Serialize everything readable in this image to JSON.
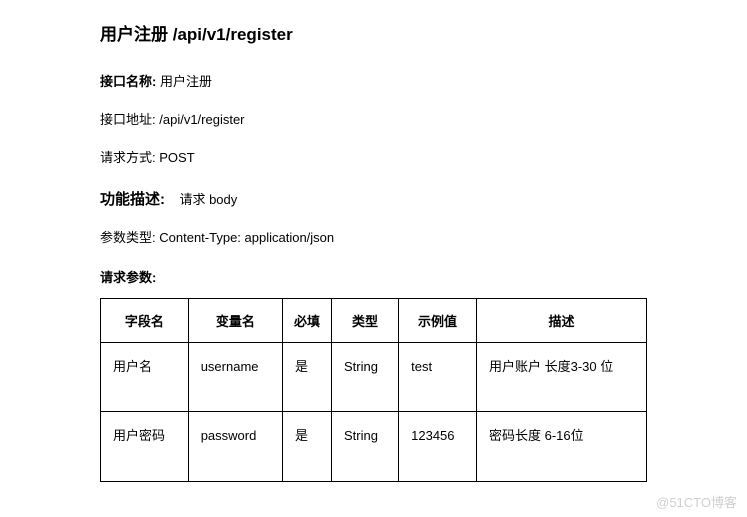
{
  "heading": "用户注册  /api/v1/register",
  "meta": {
    "name_label": "接口名称:",
    "name_value": "用户注册",
    "addr_label": "接口地址:",
    "addr_value": "/api/v1/register",
    "method_label": "请求方式:",
    "method_value": "POST"
  },
  "func": {
    "title": "功能描述:",
    "value": "请求  body"
  },
  "param_type": {
    "label": "参数类型:",
    "value": "Content-Type: application/json"
  },
  "req_params_label": "请求参数:",
  "table": {
    "headers": [
      "字段名",
      "变量名",
      "必填",
      "类型",
      "示例值",
      "描述"
    ],
    "rows": [
      [
        "用户名",
        "username",
        "是",
        "String",
        "test",
        "用户账户  长度3-30 位"
      ],
      [
        "用户密码",
        "password",
        "是",
        "String",
        "123456",
        "密码长度 6-16位"
      ]
    ]
  },
  "watermark": "@51CTO博客"
}
